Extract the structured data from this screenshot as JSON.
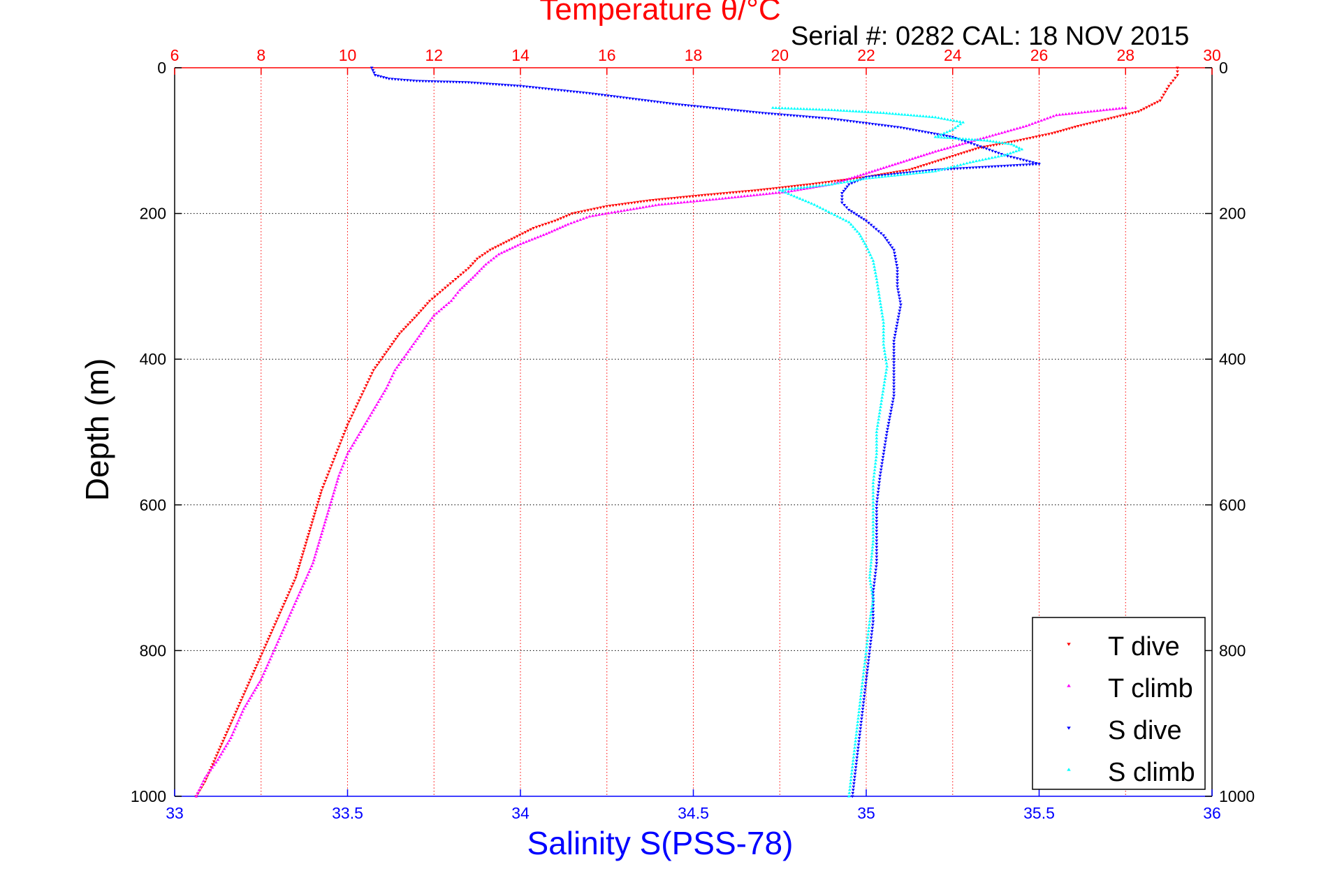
{
  "chart_data": {
    "type": "scatter",
    "title_top": "Temperature θ/°C",
    "subtitle": "Serial #: 0282  CAL: 18 NOV 2015",
    "ylabel": "Depth (m)",
    "xlabel_bottom": "Salinity S(PSS-78)",
    "axes": {
      "depth": {
        "range": [
          0,
          1000
        ],
        "reversed": true,
        "ticks": [
          0,
          200,
          400,
          600,
          800,
          1000
        ]
      },
      "temperature": {
        "range": [
          6,
          30
        ],
        "ticks": [
          6,
          8,
          10,
          12,
          14,
          16,
          18,
          20,
          22,
          24,
          26,
          28,
          30
        ],
        "color": "#ff0000"
      },
      "salinity": {
        "range": [
          33,
          36
        ],
        "ticks": [
          33,
          33.5,
          34,
          34.5,
          35,
          35.5,
          36
        ],
        "color": "#0000ff"
      }
    },
    "grid": true,
    "legend_position": "bottom-right",
    "series": [
      {
        "name": "T dive",
        "axis": "temperature",
        "color": "#ff0000",
        "marker": "triangle-down",
        "points": [
          [
            29.2,
            0
          ],
          [
            29.2,
            10
          ],
          [
            29.0,
            25
          ],
          [
            28.8,
            45
          ],
          [
            28.3,
            60
          ],
          [
            27.6,
            70
          ],
          [
            26.9,
            80
          ],
          [
            26.3,
            90
          ],
          [
            25.5,
            100
          ],
          [
            24.6,
            110
          ],
          [
            23.8,
            125
          ],
          [
            23.0,
            140
          ],
          [
            22.0,
            150
          ],
          [
            20.7,
            160
          ],
          [
            19.5,
            168
          ],
          [
            18.2,
            175
          ],
          [
            17.0,
            182
          ],
          [
            16.0,
            190
          ],
          [
            15.2,
            200
          ],
          [
            14.8,
            210
          ],
          [
            14.3,
            220
          ],
          [
            13.8,
            235
          ],
          [
            13.3,
            250
          ],
          [
            13.0,
            262
          ],
          [
            12.8,
            275
          ],
          [
            12.5,
            290
          ],
          [
            12.2,
            305
          ],
          [
            11.9,
            320
          ],
          [
            11.6,
            340
          ],
          [
            11.2,
            365
          ],
          [
            10.9,
            390
          ],
          [
            10.6,
            415
          ],
          [
            10.4,
            440
          ],
          [
            10.2,
            465
          ],
          [
            10.0,
            490
          ],
          [
            9.8,
            520
          ],
          [
            9.6,
            550
          ],
          [
            9.4,
            580
          ],
          [
            9.2,
            620
          ],
          [
            9.0,
            660
          ],
          [
            8.8,
            700
          ],
          [
            8.5,
            740
          ],
          [
            8.2,
            780
          ],
          [
            7.9,
            820
          ],
          [
            7.6,
            860
          ],
          [
            7.3,
            900
          ],
          [
            7.0,
            940
          ],
          [
            6.7,
            980
          ],
          [
            6.5,
            1000
          ]
        ]
      },
      {
        "name": "T climb",
        "axis": "temperature",
        "color": "#ff00ff",
        "marker": "triangle-up",
        "points": [
          [
            28.0,
            55
          ],
          [
            27.2,
            60
          ],
          [
            26.4,
            65
          ],
          [
            25.7,
            80
          ],
          [
            24.5,
            100
          ],
          [
            23.6,
            115
          ],
          [
            22.8,
            130
          ],
          [
            22.0,
            145
          ],
          [
            21.2,
            160
          ],
          [
            20.2,
            170
          ],
          [
            18.6,
            180
          ],
          [
            17.2,
            188
          ],
          [
            16.4,
            196
          ],
          [
            15.6,
            204
          ],
          [
            15.1,
            215
          ],
          [
            14.6,
            228
          ],
          [
            14.0,
            242
          ],
          [
            13.5,
            256
          ],
          [
            13.2,
            270
          ],
          [
            12.9,
            288
          ],
          [
            12.6,
            305
          ],
          [
            12.4,
            320
          ],
          [
            12.0,
            340
          ],
          [
            11.7,
            365
          ],
          [
            11.4,
            390
          ],
          [
            11.1,
            415
          ],
          [
            10.9,
            440
          ],
          [
            10.6,
            470
          ],
          [
            10.3,
            500
          ],
          [
            10.0,
            530
          ],
          [
            9.8,
            560
          ],
          [
            9.6,
            600
          ],
          [
            9.4,
            640
          ],
          [
            9.2,
            680
          ],
          [
            8.9,
            720
          ],
          [
            8.6,
            760
          ],
          [
            8.3,
            800
          ],
          [
            8.0,
            840
          ],
          [
            7.6,
            880
          ],
          [
            7.3,
            920
          ],
          [
            7.0,
            950
          ],
          [
            6.7,
            975
          ],
          [
            6.5,
            1000
          ]
        ]
      },
      {
        "name": "S dive",
        "axis": "salinity",
        "color": "#0000ff",
        "marker": "triangle-down",
        "points": [
          [
            33.57,
            0
          ],
          [
            33.58,
            10
          ],
          [
            33.62,
            15
          ],
          [
            33.7,
            18
          ],
          [
            33.85,
            20
          ],
          [
            34.0,
            25
          ],
          [
            34.2,
            35
          ],
          [
            34.45,
            50
          ],
          [
            34.7,
            62
          ],
          [
            34.9,
            70
          ],
          [
            35.1,
            82
          ],
          [
            35.25,
            95
          ],
          [
            35.33,
            108
          ],
          [
            35.4,
            120
          ],
          [
            35.5,
            132
          ],
          [
            35.2,
            140
          ],
          [
            35.0,
            150
          ],
          [
            34.95,
            160
          ],
          [
            34.93,
            172
          ],
          [
            34.93,
            185
          ],
          [
            34.95,
            195
          ],
          [
            35.0,
            210
          ],
          [
            35.05,
            230
          ],
          [
            35.08,
            250
          ],
          [
            35.09,
            275
          ],
          [
            35.09,
            300
          ],
          [
            35.1,
            325
          ],
          [
            35.09,
            350
          ],
          [
            35.08,
            375
          ],
          [
            35.08,
            400
          ],
          [
            35.08,
            425
          ],
          [
            35.08,
            450
          ],
          [
            35.07,
            475
          ],
          [
            35.06,
            500
          ],
          [
            35.05,
            530
          ],
          [
            35.04,
            560
          ],
          [
            35.03,
            600
          ],
          [
            35.03,
            640
          ],
          [
            35.03,
            680
          ],
          [
            35.02,
            720
          ],
          [
            35.02,
            760
          ],
          [
            35.01,
            800
          ],
          [
            35.0,
            840
          ],
          [
            34.99,
            880
          ],
          [
            34.98,
            920
          ],
          [
            34.97,
            960
          ],
          [
            34.96,
            1000
          ]
        ]
      },
      {
        "name": "S climb",
        "axis": "salinity",
        "color": "#00ffff",
        "marker": "triangle-up",
        "points": [
          [
            34.73,
            55
          ],
          [
            34.9,
            58
          ],
          [
            35.05,
            62
          ],
          [
            35.2,
            68
          ],
          [
            35.28,
            75
          ],
          [
            35.25,
            85
          ],
          [
            35.2,
            95
          ],
          [
            35.35,
            100
          ],
          [
            35.42,
            105
          ],
          [
            35.45,
            112
          ],
          [
            35.4,
            120
          ],
          [
            35.3,
            130
          ],
          [
            35.2,
            142
          ],
          [
            35.0,
            152
          ],
          [
            34.9,
            160
          ],
          [
            34.75,
            168
          ],
          [
            34.8,
            178
          ],
          [
            34.85,
            188
          ],
          [
            34.9,
            200
          ],
          [
            34.95,
            212
          ],
          [
            34.98,
            228
          ],
          [
            35.0,
            245
          ],
          [
            35.02,
            265
          ],
          [
            35.03,
            290
          ],
          [
            35.04,
            320
          ],
          [
            35.05,
            350
          ],
          [
            35.05,
            380
          ],
          [
            35.06,
            410
          ],
          [
            35.05,
            440
          ],
          [
            35.04,
            470
          ],
          [
            35.03,
            500
          ],
          [
            35.03,
            530
          ],
          [
            35.02,
            570
          ],
          [
            35.02,
            610
          ],
          [
            35.02,
            650
          ],
          [
            35.01,
            700
          ],
          [
            35.02,
            730
          ],
          [
            35.01,
            760
          ],
          [
            35.0,
            800
          ],
          [
            34.99,
            840
          ],
          [
            34.98,
            880
          ],
          [
            34.97,
            920
          ],
          [
            34.96,
            960
          ],
          [
            34.95,
            1000
          ]
        ]
      }
    ]
  }
}
